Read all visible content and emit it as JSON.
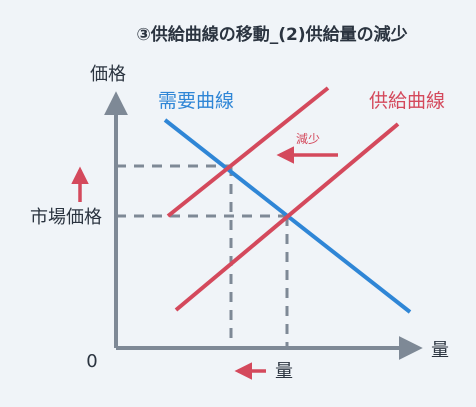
{
  "title": "③供給曲線の移動_(2)供給量の減少",
  "axes": {
    "y_label": "価格",
    "x_label": "量",
    "origin_label": "0"
  },
  "curves": {
    "demand_label": "需要曲線",
    "supply_label": "供給曲線"
  },
  "annotations": {
    "decrease_label": "減少",
    "market_price_label": "市場価格",
    "quantity_label": "量"
  },
  "colors": {
    "axis": "#7e8996",
    "demand": "#2f86d6",
    "supply": "#d4495c",
    "title": "#2b3440",
    "background": "#f0f4f8"
  }
}
